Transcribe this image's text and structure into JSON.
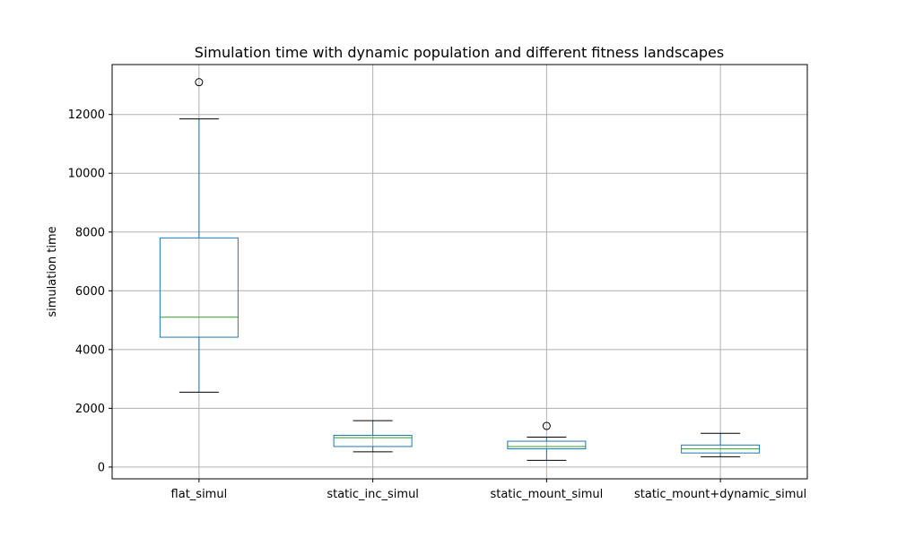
{
  "chart_data": {
    "type": "box",
    "title": "Simulation time with dynamic population and different fitness landscapes",
    "xlabel": "",
    "ylabel": "simulation time",
    "ylim": [
      -400,
      13700
    ],
    "yticks": [
      0,
      2000,
      4000,
      6000,
      8000,
      10000,
      12000
    ],
    "grid": true,
    "categories": [
      "flat_simul",
      "static_inc_simul",
      "static_mount_simul",
      "static_mount+dynamic_simul"
    ],
    "boxes": [
      {
        "whisker_low": 2550,
        "q1": 4420,
        "median": 5100,
        "q3": 7800,
        "whisker_high": 11850,
        "outliers": [
          13100
        ]
      },
      {
        "whisker_low": 520,
        "q1": 700,
        "median": 1000,
        "q3": 1080,
        "whisker_high": 1580,
        "outliers": []
      },
      {
        "whisker_low": 230,
        "q1": 620,
        "median": 700,
        "q3": 880,
        "whisker_high": 1020,
        "outliers": [
          1400
        ]
      },
      {
        "whisker_low": 350,
        "q1": 480,
        "median": 620,
        "q3": 750,
        "whisker_high": 1150,
        "outliers": []
      }
    ],
    "colors": {
      "box": "#1f77b4",
      "median": "#2ca02c",
      "whisker_cap": "#000000",
      "grid": "#b0b0b0",
      "outlier": "#000000"
    }
  }
}
